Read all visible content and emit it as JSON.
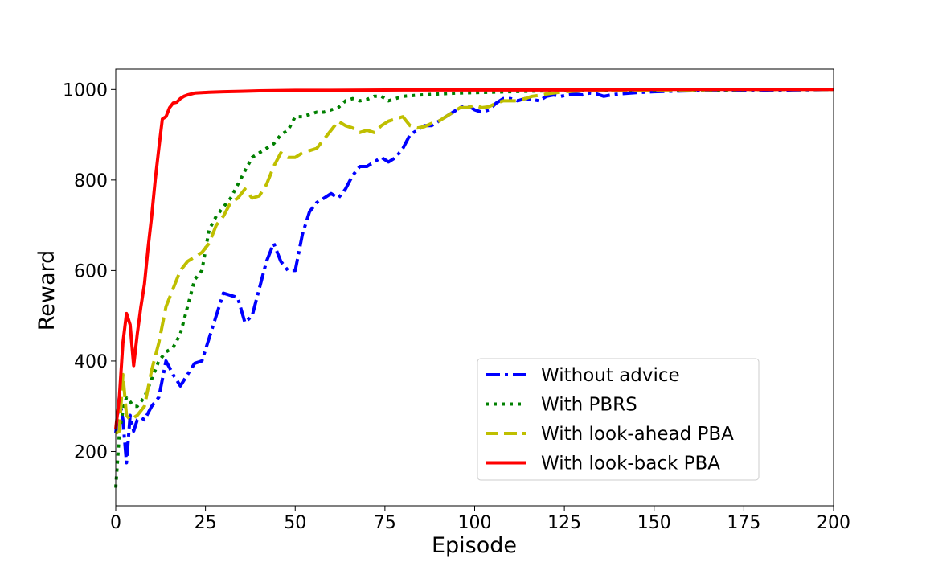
{
  "chart_data": {
    "type": "line",
    "xlabel": "Episode",
    "ylabel": "Reward",
    "xlim": [
      0,
      200
    ],
    "ylim": [
      80,
      1045
    ],
    "xticks": [
      0,
      25,
      50,
      75,
      100,
      125,
      150,
      175,
      200
    ],
    "yticks": [
      200,
      400,
      600,
      800,
      1000
    ],
    "grid": false,
    "legend_position": "lower-right",
    "series": [
      {
        "name": "Without advice",
        "color": "#0000ff",
        "dash": "dashdot",
        "x": [
          0,
          1,
          2,
          3,
          4,
          5,
          6,
          7,
          8,
          10,
          12,
          14,
          16,
          18,
          20,
          22,
          24,
          26,
          28,
          30,
          32,
          34,
          36,
          38,
          40,
          42,
          44,
          46,
          48,
          50,
          52,
          54,
          56,
          58,
          60,
          62,
          64,
          66,
          68,
          70,
          72,
          74,
          76,
          78,
          80,
          82,
          84,
          86,
          88,
          90,
          92,
          94,
          96,
          98,
          100,
          102,
          104,
          106,
          108,
          110,
          112,
          114,
          116,
          118,
          120,
          122,
          124,
          126,
          128,
          130,
          132,
          134,
          136,
          138,
          140,
          145,
          150,
          160,
          170,
          180,
          190,
          200
        ],
        "y": [
          240,
          320,
          270,
          175,
          280,
          245,
          270,
          275,
          270,
          300,
          320,
          400,
          370,
          345,
          370,
          395,
          400,
          450,
          500,
          550,
          545,
          540,
          485,
          500,
          560,
          620,
          660,
          620,
          600,
          600,
          680,
          730,
          750,
          760,
          770,
          760,
          780,
          810,
          830,
          830,
          840,
          850,
          840,
          850,
          870,
          900,
          910,
          920,
          920,
          930,
          940,
          950,
          960,
          965,
          955,
          950,
          955,
          970,
          980,
          980,
          975,
          980,
          978,
          975,
          985,
          988,
          985,
          988,
          990,
          988,
          992,
          990,
          985,
          988,
          990,
          993,
          995,
          997,
          998,
          998,
          999,
          1000
        ]
      },
      {
        "name": "With PBRS",
        "color": "#008000",
        "dash": "dotted",
        "x": [
          0,
          1,
          2,
          3,
          4,
          5,
          6,
          8,
          10,
          12,
          14,
          16,
          18,
          20,
          22,
          24,
          26,
          28,
          30,
          32,
          34,
          36,
          38,
          40,
          42,
          44,
          46,
          48,
          50,
          52,
          54,
          56,
          58,
          60,
          62,
          64,
          66,
          68,
          70,
          72,
          74,
          76,
          78,
          80,
          85,
          90,
          95,
          100,
          110,
          120,
          130,
          140,
          150,
          160,
          170,
          180,
          190,
          200
        ],
        "y": [
          120,
          240,
          290,
          320,
          310,
          300,
          300,
          320,
          360,
          400,
          420,
          430,
          460,
          520,
          580,
          600,
          690,
          720,
          740,
          760,
          790,
          820,
          850,
          860,
          870,
          880,
          900,
          910,
          940,
          940,
          945,
          950,
          950,
          955,
          960,
          975,
          980,
          975,
          978,
          985,
          985,
          975,
          980,
          985,
          988,
          990,
          992,
          993,
          995,
          997,
          998,
          998,
          999,
          999,
          999,
          1000,
          1000,
          1000
        ]
      },
      {
        "name": "With look-ahead PBA",
        "color": "#bfbf00",
        "dash": "dashed",
        "x": [
          0,
          1,
          2,
          3,
          4,
          5,
          6,
          8,
          10,
          12,
          14,
          16,
          18,
          20,
          22,
          24,
          26,
          28,
          30,
          32,
          34,
          36,
          38,
          40,
          42,
          44,
          46,
          48,
          50,
          52,
          54,
          56,
          58,
          60,
          62,
          64,
          66,
          68,
          70,
          72,
          74,
          76,
          78,
          80,
          82,
          84,
          86,
          88,
          90,
          92,
          94,
          96,
          98,
          100,
          102,
          104,
          106,
          108,
          110,
          112,
          114,
          116,
          118,
          120,
          125,
          130,
          140,
          150,
          160,
          170,
          180,
          190,
          200
        ],
        "y": [
          240,
          245,
          370,
          280,
          270,
          275,
          280,
          300,
          380,
          440,
          520,
          560,
          600,
          620,
          630,
          640,
          660,
          700,
          720,
          750,
          760,
          780,
          760,
          765,
          790,
          830,
          860,
          850,
          850,
          860,
          865,
          870,
          890,
          910,
          930,
          920,
          915,
          905,
          910,
          905,
          920,
          930,
          935,
          940,
          920,
          915,
          918,
          925,
          930,
          940,
          950,
          960,
          960,
          965,
          960,
          962,
          970,
          975,
          975,
          975,
          980,
          985,
          987,
          990,
          995,
          997,
          998,
          999,
          999,
          1000,
          1000,
          1000,
          1000
        ]
      },
      {
        "name": "With look-back PBA",
        "color": "#ff0000",
        "dash": "solid",
        "x": [
          0,
          1,
          2,
          3,
          4,
          5,
          6,
          7,
          8,
          9,
          10,
          11,
          12,
          13,
          14,
          15,
          16,
          17,
          18,
          19,
          20,
          21,
          22,
          24,
          26,
          30,
          35,
          40,
          50,
          60,
          80,
          100,
          125,
          150,
          175,
          200
        ],
        "y": [
          250,
          320,
          440,
          505,
          480,
          390,
          460,
          520,
          570,
          650,
          720,
          800,
          870,
          935,
          940,
          960,
          970,
          972,
          980,
          985,
          988,
          990,
          992,
          993,
          994,
          995,
          996,
          997,
          998,
          998,
          999,
          999,
          999,
          1000,
          1000,
          1000
        ]
      }
    ]
  }
}
